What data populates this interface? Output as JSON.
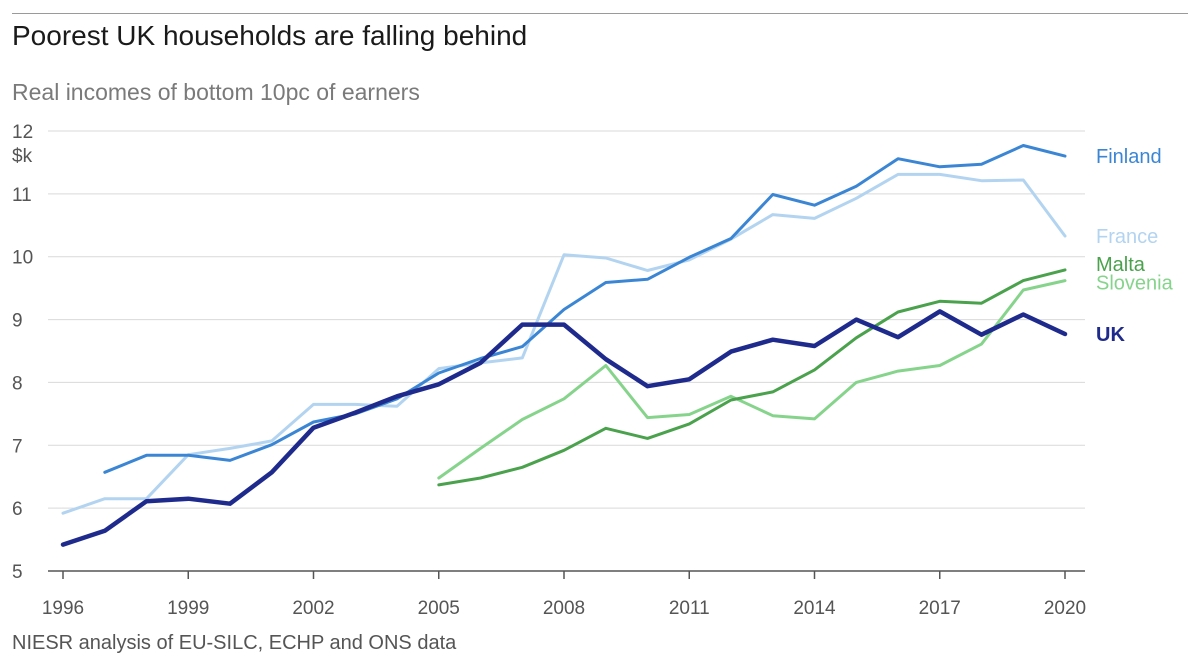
{
  "header": {
    "title": "Poorest UK households are falling behind",
    "subtitle": "Real incomes of bottom 10pc of earners"
  },
  "footer": {
    "source": "NIESR analysis of EU-SILC, ECHP and ONS data"
  },
  "chart_data": {
    "type": "line",
    "title": "Poorest UK households are falling behind",
    "subtitle": "Real incomes of bottom 10pc of earners",
    "xlabel": "",
    "ylabel": "$k",
    "xlim": [
      1996,
      2020
    ],
    "ylim": [
      5,
      12
    ],
    "x_ticks": [
      1996,
      1999,
      2002,
      2005,
      2008,
      2011,
      2014,
      2017,
      2020
    ],
    "y_ticks": [
      5,
      6,
      7,
      8,
      9,
      10,
      11,
      12
    ],
    "grid": "horizontal",
    "legend": "direct labels at right end of lines",
    "series": [
      {
        "name": "France",
        "color": "#b3d4f0",
        "points": [
          [
            1996,
            5.92
          ],
          [
            1997,
            6.15
          ],
          [
            1998,
            6.15
          ],
          [
            1999,
            6.85
          ],
          [
            2000,
            6.95
          ],
          [
            2001,
            7.07
          ],
          [
            2002,
            7.65
          ],
          [
            2003,
            7.65
          ],
          [
            2004,
            7.62
          ],
          [
            2005,
            8.22
          ],
          [
            2006,
            8.31
          ],
          [
            2007,
            8.39
          ],
          [
            2008,
            10.03
          ],
          [
            2009,
            9.98
          ],
          [
            2010,
            9.78
          ],
          [
            2011,
            9.95
          ],
          [
            2012,
            10.28
          ],
          [
            2013,
            10.67
          ],
          [
            2014,
            10.61
          ],
          [
            2015,
            10.93
          ],
          [
            2016,
            11.31
          ],
          [
            2017,
            11.31
          ],
          [
            2018,
            11.21
          ],
          [
            2019,
            11.22
          ],
          [
            2020,
            10.33
          ]
        ]
      },
      {
        "name": "Finland",
        "color": "#3b86d4",
        "points": [
          [
            1997,
            6.57
          ],
          [
            1998,
            6.84
          ],
          [
            1999,
            6.84
          ],
          [
            2000,
            6.76
          ],
          [
            2001,
            7.01
          ],
          [
            2002,
            7.37
          ],
          [
            2003,
            7.5
          ],
          [
            2004,
            7.74
          ],
          [
            2005,
            8.15
          ],
          [
            2006,
            8.38
          ],
          [
            2007,
            8.57
          ],
          [
            2008,
            9.16
          ],
          [
            2009,
            9.59
          ],
          [
            2010,
            9.64
          ],
          [
            2011,
            9.99
          ],
          [
            2012,
            10.29
          ],
          [
            2013,
            10.99
          ],
          [
            2014,
            10.82
          ],
          [
            2015,
            11.12
          ],
          [
            2016,
            11.56
          ],
          [
            2017,
            11.43
          ],
          [
            2018,
            11.47
          ],
          [
            2019,
            11.77
          ],
          [
            2020,
            11.6
          ]
        ]
      },
      {
        "name": "Slovenia",
        "color": "#86d48c",
        "points": [
          [
            2005,
            6.48
          ],
          [
            2006,
            6.95
          ],
          [
            2007,
            7.41
          ],
          [
            2008,
            7.74
          ],
          [
            2009,
            8.27
          ],
          [
            2010,
            7.44
          ],
          [
            2011,
            7.49
          ],
          [
            2012,
            7.78
          ],
          [
            2013,
            7.47
          ],
          [
            2014,
            7.42
          ],
          [
            2015,
            8.0
          ],
          [
            2016,
            8.18
          ],
          [
            2017,
            8.27
          ],
          [
            2018,
            8.61
          ],
          [
            2019,
            9.47
          ],
          [
            2020,
            9.62
          ]
        ]
      },
      {
        "name": "Malta",
        "color": "#4aa24d",
        "points": [
          [
            2005,
            6.37
          ],
          [
            2006,
            6.48
          ],
          [
            2007,
            6.65
          ],
          [
            2008,
            6.92
          ],
          [
            2009,
            7.27
          ],
          [
            2010,
            7.11
          ],
          [
            2011,
            7.34
          ],
          [
            2012,
            7.72
          ],
          [
            2013,
            7.85
          ],
          [
            2014,
            8.2
          ],
          [
            2015,
            8.71
          ],
          [
            2016,
            9.12
          ],
          [
            2017,
            9.29
          ],
          [
            2018,
            9.26
          ],
          [
            2019,
            9.62
          ],
          [
            2020,
            9.79
          ]
        ]
      },
      {
        "name": "UK",
        "color": "#1e2b8c",
        "points": [
          [
            1996,
            5.42
          ],
          [
            1997,
            5.64
          ],
          [
            1998,
            6.11
          ],
          [
            1999,
            6.15
          ],
          [
            2000,
            6.07
          ],
          [
            2001,
            6.57
          ],
          [
            2002,
            7.28
          ],
          [
            2003,
            7.52
          ],
          [
            2004,
            7.78
          ],
          [
            2005,
            7.97
          ],
          [
            2006,
            8.31
          ],
          [
            2007,
            8.92
          ],
          [
            2008,
            8.92
          ],
          [
            2009,
            8.37
          ],
          [
            2010,
            7.94
          ],
          [
            2011,
            8.05
          ],
          [
            2012,
            8.49
          ],
          [
            2013,
            8.68
          ],
          [
            2014,
            8.58
          ],
          [
            2015,
            9.0
          ],
          [
            2016,
            8.72
          ],
          [
            2017,
            9.13
          ],
          [
            2018,
            8.76
          ],
          [
            2019,
            9.08
          ],
          [
            2020,
            8.77
          ]
        ]
      }
    ]
  }
}
